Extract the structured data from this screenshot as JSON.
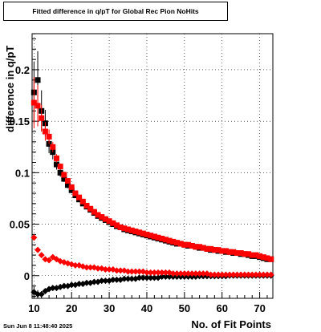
{
  "title": "Fitted difference in q/pT for Global Rec Pion NoHits",
  "timestamp": "Sun Jun  8 11:48:40 2025",
  "chart_data": {
    "type": "scatter",
    "title": "Fitted difference in q/pT for Global Rec Pion NoHits",
    "xlabel": "No. of Fit Points",
    "ylabel": "difference in q/pT",
    "xlim": [
      9.5,
      73.5
    ],
    "ylim": [
      -0.022,
      0.235
    ],
    "xticks": [
      10,
      20,
      30,
      40,
      50,
      60,
      70
    ],
    "yticks": [
      0,
      0.05,
      0.1,
      0.15,
      0.2
    ],
    "ytick_labels": [
      "0",
      "0.05",
      "0.1",
      "0.15",
      "0.2"
    ],
    "grid": true,
    "series": [
      {
        "color": "#000000",
        "marker": "square",
        "x": [
          10,
          11,
          12,
          13,
          14,
          15,
          16,
          17,
          18,
          19,
          20,
          21,
          22,
          23,
          24,
          25,
          26,
          27,
          28,
          29,
          30,
          31,
          32,
          33,
          34,
          35,
          36,
          37,
          38,
          39,
          40,
          41,
          42,
          43,
          44,
          45,
          46,
          47,
          48,
          49,
          50,
          51,
          52,
          53,
          54,
          55,
          56,
          57,
          58,
          59,
          60,
          61,
          62,
          63,
          64,
          65,
          66,
          67,
          68,
          69,
          70,
          71,
          72,
          73
        ],
        "y": [
          0.178,
          0.19,
          0.16,
          0.148,
          0.128,
          0.12,
          0.108,
          0.1,
          0.094,
          0.088,
          0.083,
          0.078,
          0.074,
          0.07,
          0.067,
          0.064,
          0.061,
          0.058,
          0.056,
          0.054,
          0.052,
          0.05,
          0.048,
          0.047,
          0.045,
          0.044,
          0.043,
          0.042,
          0.041,
          0.04,
          0.039,
          0.038,
          0.037,
          0.036,
          0.035,
          0.034,
          0.033,
          0.032,
          0.031,
          0.031,
          0.03,
          0.029,
          0.029,
          0.028,
          0.027,
          0.027,
          0.026,
          0.025,
          0.025,
          0.024,
          0.024,
          0.023,
          0.023,
          0.022,
          0.022,
          0.021,
          0.021,
          0.02,
          0.019,
          0.019,
          0.018,
          0.017,
          0.016,
          0.016
        ],
        "yerr": [
          0.03,
          0.028,
          0.02,
          0.013,
          0.009,
          0.007,
          0.005,
          0.004,
          0.003,
          0.003,
          0.003,
          0.002,
          0.002,
          0.002,
          0.002,
          0.002,
          0.002,
          0.002,
          0.002,
          0.002,
          0.002,
          0.002,
          0.002,
          0.002,
          0.002,
          0.002,
          0.002,
          0.002,
          0.002,
          0.002,
          0.002,
          0.002,
          0.002,
          0.002,
          0.002,
          0.002,
          0.002,
          0.002,
          0.002,
          0.002,
          0.002,
          0.002,
          0.002,
          0.002,
          0.002,
          0.002,
          0.002,
          0.002,
          0.002,
          0.002,
          0.002,
          0.002,
          0.002,
          0.002,
          0.002,
          0.002,
          0.002,
          0.002,
          0.002,
          0.002,
          0.002,
          0.002,
          0.002,
          0.002
        ]
      },
      {
        "color": "#ff0000",
        "marker": "square",
        "x": [
          10,
          11,
          12,
          13,
          14,
          15,
          16,
          17,
          18,
          19,
          20,
          21,
          22,
          23,
          24,
          25,
          26,
          27,
          28,
          29,
          30,
          31,
          32,
          33,
          34,
          35,
          36,
          37,
          38,
          39,
          40,
          41,
          42,
          43,
          44,
          45,
          46,
          47,
          48,
          49,
          50,
          51,
          52,
          53,
          54,
          55,
          56,
          57,
          58,
          59,
          60,
          61,
          62,
          63,
          64,
          65,
          66,
          67,
          68,
          69,
          70,
          71,
          72,
          73
        ],
        "y": [
          0.168,
          0.165,
          0.153,
          0.14,
          0.135,
          0.125,
          0.114,
          0.106,
          0.098,
          0.092,
          0.086,
          0.08,
          0.076,
          0.072,
          0.068,
          0.065,
          0.062,
          0.059,
          0.057,
          0.055,
          0.053,
          0.051,
          0.049,
          0.047,
          0.046,
          0.045,
          0.044,
          0.043,
          0.042,
          0.041,
          0.04,
          0.039,
          0.038,
          0.037,
          0.036,
          0.035,
          0.034,
          0.033,
          0.032,
          0.031,
          0.03,
          0.03,
          0.029,
          0.028,
          0.028,
          0.027,
          0.026,
          0.026,
          0.025,
          0.025,
          0.024,
          0.024,
          0.023,
          0.023,
          0.022,
          0.022,
          0.021,
          0.021,
          0.02,
          0.02,
          0.019,
          0.018,
          0.017,
          0.016
        ],
        "yerr": [
          0.025,
          0.02,
          0.013,
          0.009,
          0.007,
          0.005,
          0.004,
          0.003,
          0.003,
          0.002,
          0.002,
          0.002,
          0.002,
          0.002,
          0.002,
          0.002,
          0.002,
          0.002,
          0.002,
          0.002,
          0.002,
          0.002,
          0.002,
          0.002,
          0.002,
          0.002,
          0.002,
          0.002,
          0.002,
          0.002,
          0.002,
          0.002,
          0.002,
          0.002,
          0.002,
          0.002,
          0.002,
          0.002,
          0.002,
          0.002,
          0.002,
          0.002,
          0.002,
          0.002,
          0.002,
          0.002,
          0.002,
          0.002,
          0.002,
          0.002,
          0.002,
          0.002,
          0.002,
          0.002,
          0.002,
          0.002,
          0.002,
          0.002,
          0.002,
          0.002,
          0.002,
          0.002,
          0.002,
          0.002
        ]
      },
      {
        "color": "#000000",
        "marker": "diamond",
        "x": [
          10,
          11,
          12,
          13,
          14,
          15,
          16,
          17,
          18,
          19,
          20,
          21,
          22,
          23,
          24,
          25,
          26,
          27,
          28,
          29,
          30,
          31,
          32,
          33,
          34,
          35,
          36,
          37,
          38,
          39,
          40,
          41,
          42,
          43,
          44,
          45,
          46,
          47,
          48,
          49,
          50,
          51,
          52,
          53,
          54,
          55,
          56,
          57,
          58,
          59,
          60,
          61,
          62,
          63,
          64,
          65,
          66,
          67,
          68,
          69,
          70,
          71,
          72,
          73
        ],
        "y": [
          -0.016,
          -0.018,
          -0.018,
          -0.015,
          -0.013,
          -0.012,
          -0.012,
          -0.011,
          -0.01,
          -0.01,
          -0.009,
          -0.009,
          -0.008,
          -0.008,
          -0.007,
          -0.007,
          -0.006,
          -0.006,
          -0.005,
          -0.005,
          -0.005,
          -0.004,
          -0.004,
          -0.004,
          -0.003,
          -0.003,
          -0.003,
          -0.003,
          -0.002,
          -0.002,
          -0.002,
          -0.002,
          -0.002,
          -0.002,
          -0.001,
          -0.001,
          -0.001,
          -0.001,
          -0.001,
          -0.001,
          -0.001,
          -0.001,
          -0.001,
          -0.001,
          -0.0005,
          -0.0005,
          -0.0005,
          -0.0005,
          -0.0005,
          -0.0005,
          -0.0005,
          -0.0005,
          0,
          0,
          0,
          0,
          0,
          0,
          0,
          0,
          0,
          0,
          0,
          0
        ],
        "yerr": [
          0.006,
          0.004,
          0.003,
          0.002,
          0.002,
          0.001,
          0.001,
          0.001,
          0.001,
          0.001,
          0.001,
          0.001,
          0.001,
          0.001,
          0.001,
          0.001,
          0.001,
          0.001,
          0.001,
          0.001,
          0.001,
          0.001,
          0.001,
          0.001,
          0.001,
          0.001,
          0.001,
          0.001,
          0.001,
          0.001,
          0.001,
          0.001,
          0.001,
          0.001,
          0.001,
          0.001,
          0.001,
          0.001,
          0.001,
          0.001,
          0.001,
          0.001,
          0.001,
          0.001,
          0.001,
          0.001,
          0.001,
          0.001,
          0.001,
          0.001,
          0.001,
          0.001,
          0.001,
          0.001,
          0.001,
          0.001,
          0.001,
          0.001,
          0.001,
          0.001,
          0.001,
          0.001,
          0.001,
          0.001
        ]
      },
      {
        "color": "#ff0000",
        "marker": "diamond",
        "x": [
          10,
          11,
          12,
          13,
          14,
          15,
          16,
          17,
          18,
          19,
          20,
          21,
          22,
          23,
          24,
          25,
          26,
          27,
          28,
          29,
          30,
          31,
          32,
          33,
          34,
          35,
          36,
          37,
          38,
          39,
          40,
          41,
          42,
          43,
          44,
          45,
          46,
          47,
          48,
          49,
          50,
          51,
          52,
          53,
          54,
          55,
          56,
          57,
          58,
          59,
          60,
          61,
          62,
          63,
          64,
          65,
          66,
          67,
          68,
          69,
          70,
          71,
          72,
          73
        ],
        "y": [
          0.037,
          0.025,
          0.02,
          0.016,
          0.015,
          0.018,
          0.016,
          0.014,
          0.013,
          0.012,
          0.011,
          0.01,
          0.01,
          0.009,
          0.008,
          0.008,
          0.008,
          0.007,
          0.007,
          0.006,
          0.006,
          0.006,
          0.005,
          0.005,
          0.005,
          0.004,
          0.004,
          0.004,
          0.004,
          0.004,
          0.003,
          0.003,
          0.003,
          0.003,
          0.003,
          0.003,
          0.003,
          0.002,
          0.002,
          0.002,
          0.002,
          0.002,
          0.002,
          0.002,
          0.002,
          0.002,
          0.002,
          0.001,
          0.001,
          0.001,
          0.001,
          0.001,
          0.001,
          0.001,
          0.001,
          0.001,
          0.001,
          0.001,
          0.001,
          0.001,
          0.001,
          0.001,
          0.001,
          0.001
        ],
        "yerr": [
          0.003,
          0.002,
          0.002,
          0.001,
          0.001,
          0.001,
          0.001,
          0.001,
          0.001,
          0.001,
          0.001,
          0.001,
          0.001,
          0.001,
          0.001,
          0.001,
          0.001,
          0.001,
          0.001,
          0.001,
          0.001,
          0.001,
          0.001,
          0.001,
          0.001,
          0.001,
          0.001,
          0.001,
          0.001,
          0.001,
          0.001,
          0.001,
          0.001,
          0.001,
          0.001,
          0.001,
          0.001,
          0.001,
          0.001,
          0.001,
          0.001,
          0.001,
          0.001,
          0.001,
          0.001,
          0.001,
          0.001,
          0.001,
          0.001,
          0.001,
          0.001,
          0.001,
          0.001,
          0.001,
          0.001,
          0.001,
          0.001,
          0.001,
          0.001,
          0.001,
          0.001,
          0.001,
          0.001,
          0.001
        ]
      }
    ]
  }
}
